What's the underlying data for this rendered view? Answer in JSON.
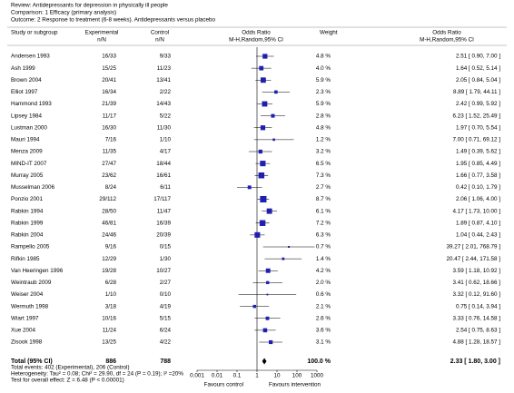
{
  "chart_data": {
    "type": "forest",
    "review": "Review:  Antidepressants for depression in physically ill people",
    "comparison": "Comparison:  1 Efficacy (primary analysis)",
    "outcome": "Outcome:  2 Response to treatment (6-8 weeks). Antidepressants versus placebo",
    "column_headers": {
      "study": "Study or subgroup",
      "experimental": "Experimental",
      "experimental_unit": "n/N",
      "control": "Control",
      "control_unit": "n/N",
      "plot": "Odds Ratio",
      "plot_method": "M-H,Random,95% CI",
      "weight": "Weight",
      "estimate": "Odds Ratio",
      "estimate_method": "M-H,Random,95% CI"
    },
    "studies": [
      "Andersen 1993",
      "Ash 1999",
      "Brown 2004",
      "Elliot 1997",
      "Hammond 1993",
      "Lipsey 1984",
      "Lustman 2000",
      "Mauri 1994",
      "Menza 2009",
      "MIND-IT 2007",
      "Murray 2005",
      "Musselman 2006",
      "Ponzio 2001",
      "Rabkin 1994",
      "Rabkin 1999",
      "Rabkin 2004",
      "Rampello 2005",
      "Rifkin 1985",
      "Van Heeringen 1996",
      "Weintraub 2009",
      "Weiser 2004",
      "Wermuth 1998",
      "Wiart 1997",
      "Xue 2004",
      "Zisook 1998"
    ],
    "experimental": [
      "16/33",
      "15/25",
      "20/41",
      "16/34",
      "21/39",
      "11/17",
      "16/30",
      "7/16",
      "11/35",
      "27/47",
      "23/62",
      "8/24",
      "29/112",
      "28/50",
      "46/81",
      "24/46",
      "9/16",
      "12/29",
      "19/28",
      "6/28",
      "1/10",
      "3/18",
      "10/16",
      "11/24",
      "13/25"
    ],
    "control": [
      "9/33",
      "11/23",
      "13/41",
      "2/22",
      "14/43",
      "5/22",
      "11/30",
      "1/10",
      "4/17",
      "18/44",
      "16/61",
      "6/11",
      "17/117",
      "11/47",
      "16/39",
      "20/39",
      "0/15",
      "1/30",
      "10/27",
      "2/27",
      "0/10",
      "4/19",
      "5/15",
      "6/24",
      "4/22"
    ],
    "weights": [
      4.8,
      4.0,
      5.9,
      2.3,
      5.9,
      2.8,
      4.8,
      1.2,
      3.2,
      6.5,
      7.3,
      2.7,
      8.7,
      6.1,
      7.2,
      6.3,
      0.7,
      1.4,
      4.2,
      2.0,
      0.6,
      2.1,
      2.6,
      3.6,
      3.1
    ],
    "weight_labels": [
      "4.8 %",
      "4.0 %",
      "5.9 %",
      "2.3 %",
      "5.9 %",
      "2.8 %",
      "4.8 %",
      "1.2 %",
      "3.2 %",
      "6.5 %",
      "7.3 %",
      "2.7 %",
      "8.7 %",
      "6.1 %",
      "7.2 %",
      "6.3 %",
      "0.7 %",
      "1.4 %",
      "4.2 %",
      "2.0 %",
      "0.6 %",
      "2.1 %",
      "2.6 %",
      "3.6 %",
      "3.1 %"
    ],
    "values": [
      2.51,
      1.64,
      2.05,
      8.89,
      2.42,
      6.23,
      1.97,
      7.0,
      1.49,
      1.95,
      1.66,
      0.42,
      2.06,
      4.17,
      1.89,
      1.04,
      39.27,
      20.47,
      3.59,
      3.41,
      3.32,
      0.75,
      3.33,
      2.54,
      4.88
    ],
    "ci_low": [
      0.9,
      0.52,
      0.84,
      1.79,
      0.99,
      1.52,
      0.7,
      0.71,
      0.39,
      0.85,
      0.77,
      0.1,
      1.06,
      1.73,
      0.87,
      0.44,
      2.01,
      2.44,
      1.18,
      0.62,
      0.12,
      0.14,
      0.76,
      0.75,
      1.28
    ],
    "ci_high": [
      7.0,
      5.14,
      5.04,
      44.11,
      5.92,
      25.49,
      5.54,
      69.12,
      5.62,
      4.49,
      3.58,
      1.79,
      4.0,
      10.0,
      4.1,
      2.43,
      768.79,
      171.58,
      10.92,
      18.66,
      91.6,
      3.94,
      14.58,
      8.63,
      18.57
    ],
    "value_labels": [
      "2.51 [ 0.90, 7.00 ]",
      "1.64 [ 0.52, 5.14 ]",
      "2.05 [ 0.84, 5.04 ]",
      "8.89 [ 1.79, 44.11 ]",
      "2.42 [ 0.99, 5.92 ]",
      "6.23 [ 1.52, 25.49 ]",
      "1.97 [ 0.70, 5.54 ]",
      "7.00 [ 0.71, 69.12 ]",
      "1.49 [ 0.39, 5.62 ]",
      "1.95 [ 0.85, 4.49 ]",
      "1.66 [ 0.77, 3.58 ]",
      "0.42 [ 0.10, 1.79 ]",
      "2.06 [ 1.06, 4.00 ]",
      "4.17 [ 1.73, 10.00 ]",
      "1.89 [ 0.87, 4.10 ]",
      "1.04 [ 0.44, 2.43 ]",
      "39.27 [ 2.01, 768.79 ]",
      "20.47 [ 2.44, 171.58 ]",
      "3.59 [ 1.18, 10.92 ]",
      "3.41 [ 0.62, 18.66 ]",
      "3.32 [ 0.12, 91.60 ]",
      "0.75 [ 0.14, 3.94 ]",
      "3.33 [ 0.76, 14.58 ]",
      "2.54 [ 0.75, 8.63 ]",
      "4.88 [ 1.28, 18.57 ]"
    ],
    "color": "#2020b0",
    "total": {
      "label": "Total (95% CI)",
      "experimental": 886,
      "control": 788,
      "weight": 100.0,
      "weight_label": "100.0 %",
      "value": 2.33,
      "ci_low": 1.8,
      "ci_high": 3.0,
      "value_label": "2.33 [ 1.80, 3.00 ]"
    },
    "total_events": "Total events: 402 (Experimental), 206 (Control)",
    "heterogeneity": "Heterogeneity: Tau² = 0.08; Chi² = 29.90, df = 24 (P = 0.19); I² =20%",
    "overall_effect": "Test for overall effect: Z = 6.48 (P < 0.00001)",
    "log_x": true,
    "xlim": [
      0.001,
      1000
    ],
    "xticks": [
      0.001,
      0.01,
      0.1,
      1,
      10,
      100,
      1000
    ],
    "favours_left": "Favours control",
    "favours_right": "Favours intervention"
  }
}
